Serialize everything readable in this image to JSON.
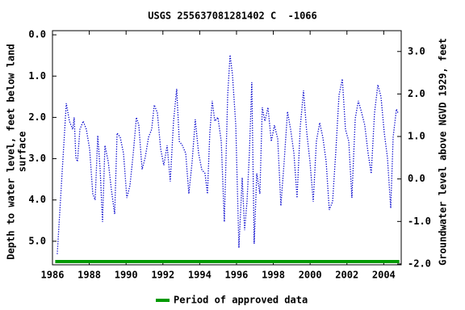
{
  "chart_data": {
    "type": "line",
    "title": "USGS 255637081281402 C  -1066",
    "ylabel": [
      "Depth to water level, feet below land",
      "surface"
    ],
    "y2label": "Groundwater level above NGVD 1929, feet",
    "xlim": [
      1986,
      2004.95
    ],
    "xticks": [
      1986,
      1988,
      1990,
      1992,
      1994,
      1996,
      1998,
      2000,
      2002,
      2004
    ],
    "ylim": [
      5.57,
      -0.1
    ],
    "yticks": [
      {
        "value": 0,
        "label": "0.0"
      },
      {
        "value": 1,
        "label": "1.0"
      },
      {
        "value": 2,
        "label": "2.0"
      },
      {
        "value": 3,
        "label": "3.0"
      },
      {
        "value": 4,
        "label": "4.0"
      },
      {
        "value": 5,
        "label": "5.0"
      }
    ],
    "y2lim": [
      -2.02,
      3.49
    ],
    "y2ticks": [
      {
        "value": 3,
        "label": "3.0"
      },
      {
        "value": 2,
        "label": "2.0"
      },
      {
        "value": 1,
        "label": "1.0"
      },
      {
        "value": 0,
        "label": "0.0"
      },
      {
        "value": -1,
        "label": "-1.0"
      },
      {
        "value": -2,
        "label": "-2.0"
      }
    ],
    "grid": false,
    "series": [
      {
        "color": "#0000cc",
        "x": [
          1986.26,
          1986.75,
          1986.92,
          1987.1,
          1987.18,
          1987.27,
          1987.36,
          1987.49,
          1987.67,
          1987.84,
          1988.02,
          1988.19,
          1988.32,
          1988.46,
          1988.59,
          1988.72,
          1988.85,
          1989.03,
          1989.2,
          1989.38,
          1989.51,
          1989.68,
          1989.86,
          1990.04,
          1990.21,
          1990.39,
          1990.56,
          1990.69,
          1990.87,
          1991.04,
          1991.22,
          1991.39,
          1991.53,
          1991.7,
          1991.88,
          1992.05,
          1992.23,
          1992.4,
          1992.58,
          1992.75,
          1992.89,
          1993.06,
          1993.24,
          1993.41,
          1993.59,
          1993.76,
          1993.94,
          1994.11,
          1994.29,
          1994.42,
          1994.55,
          1994.68,
          1994.82,
          1994.99,
          1995.17,
          1995.34,
          1995.52,
          1995.65,
          1995.78,
          1995.96,
          1996.13,
          1996.31,
          1996.44,
          1996.57,
          1996.7,
          1996.83,
          1996.96,
          1997.1,
          1997.27,
          1997.4,
          1997.54,
          1997.71,
          1997.89,
          1998.06,
          1998.24,
          1998.41,
          1998.59,
          1998.77,
          1998.94,
          1999.12,
          1999.29,
          1999.46,
          1999.64,
          1999.82,
          1999.99,
          2000.17,
          2000.34,
          2000.52,
          2000.69,
          2000.87,
          2001.04,
          2001.22,
          2001.39,
          2001.57,
          2001.75,
          2001.92,
          2002.1,
          2002.27,
          2002.45,
          2002.62,
          2002.8,
          2002.97,
          2003.15,
          2003.32,
          2003.5,
          2003.68,
          2003.85,
          2004.03,
          2004.2,
          2004.38,
          2004.51,
          2004.69,
          2004.77
        ],
        "values": [
          5.31,
          1.66,
          2.09,
          2.29,
          2.0,
          2.97,
          3.07,
          2.29,
          2.09,
          2.29,
          2.77,
          3.85,
          4.0,
          2.44,
          3.26,
          4.53,
          2.68,
          3.07,
          3.75,
          4.34,
          2.38,
          2.48,
          2.87,
          3.95,
          3.65,
          2.87,
          2.0,
          2.19,
          3.26,
          2.97,
          2.48,
          2.29,
          1.7,
          1.89,
          2.77,
          3.16,
          2.68,
          3.55,
          2.09,
          1.31,
          2.58,
          2.68,
          2.87,
          3.85,
          3.07,
          2.05,
          2.87,
          3.26,
          3.36,
          3.85,
          2.38,
          1.6,
          2.09,
          2.0,
          2.58,
          4.53,
          1.46,
          0.49,
          0.96,
          2.19,
          5.16,
          3.46,
          4.73,
          4.04,
          2.87,
          1.15,
          5.06,
          3.36,
          3.85,
          1.76,
          2.09,
          1.76,
          2.58,
          2.19,
          2.52,
          4.14,
          3.07,
          1.86,
          2.29,
          2.87,
          3.95,
          2.25,
          1.35,
          2.38,
          3.07,
          4.04,
          2.58,
          2.13,
          2.48,
          3.07,
          4.24,
          4.04,
          2.87,
          1.46,
          1.07,
          2.29,
          2.58,
          3.95,
          2.03,
          1.6,
          1.89,
          2.19,
          2.87,
          3.36,
          1.89,
          1.21,
          1.5,
          2.38,
          2.97,
          4.2,
          2.48,
          1.8,
          1.89
        ]
      }
    ],
    "approved_period": {
      "label": "Period of approved data",
      "color": "#009900",
      "x": [
        1986.15,
        2004.85
      ]
    }
  }
}
